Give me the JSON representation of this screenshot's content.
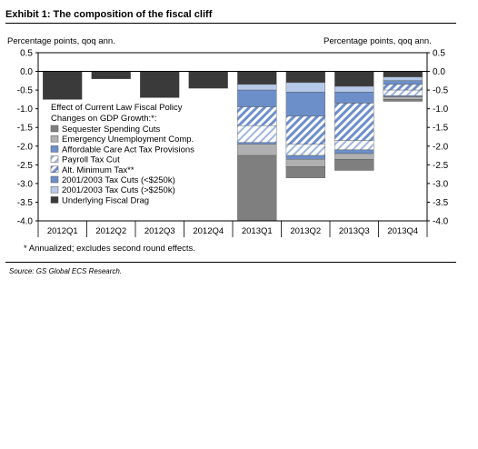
{
  "exhibit_title": "Exhibit 1: The composition of the fiscal cliff",
  "source": "Source: GS Global ECS Research.",
  "footnote": "* Annualized; excludes second round effects.",
  "colors": {
    "Sequester Spending Cuts": "#7f7f7f",
    "Emergency Unemployment Comp.": "#b0b0b0",
    "Affordable Care Act Tax Provisions": "#6d8fc9",
    "Payroll Tax Cut": "#e8eef8",
    "Alt. Minimum Tax**": "#6d8fc9",
    "2001/2003 Tax Cuts (<$250k)": "#6d8fc9",
    "2001/2003 Tax Cuts (>$250k)": "#b7c9e8",
    "Underlying Fiscal Drag": "#3a3a3a"
  },
  "chart_data": {
    "type": "bar",
    "stacked": true,
    "ylabel_left": "Percentage points, qoq ann.",
    "ylabel_right": "Percentage points, qoq ann.",
    "ylim": [
      -4.0,
      0.5
    ],
    "yticks": [
      0.5,
      0.0,
      -0.5,
      -1.0,
      -1.5,
      -2.0,
      -2.5,
      -3.0,
      -3.5,
      -4.0
    ],
    "ytick_labels": [
      "0.5",
      "0.0",
      "-0.5",
      "-1.0",
      "-1.5",
      "-2.0",
      "-2.5",
      "-3.0",
      "-3.5",
      "-4.0"
    ],
    "categories": [
      "2012Q1",
      "2012Q2",
      "2012Q3",
      "2012Q4",
      "2013Q1",
      "2013Q2",
      "2013Q3",
      "2013Q4"
    ],
    "legend_title": "Effect of Current Law Fiscal Policy Changes on GDP Growth:*:",
    "legend_position": "inside-left",
    "series": [
      {
        "name": "Underlying Fiscal Drag",
        "pattern": "solid",
        "values": [
          -0.75,
          -0.2,
          -0.7,
          -0.45,
          -0.35,
          -0.3,
          -0.4,
          -0.15
        ]
      },
      {
        "name": "2001/2003 Tax Cuts (>$250k)",
        "pattern": "solid",
        "values": [
          0,
          0,
          0,
          0,
          -0.15,
          -0.25,
          -0.15,
          -0.1
        ]
      },
      {
        "name": "2001/2003 Tax Cuts (<$250k)",
        "pattern": "solid",
        "values": [
          0,
          0,
          0,
          0,
          -0.45,
          -0.65,
          -0.3,
          -0.1
        ]
      },
      {
        "name": "Alt. Minimum Tax**",
        "pattern": "hatch",
        "values": [
          0,
          0,
          0,
          0,
          -0.5,
          -0.75,
          -1.0,
          -0.15
        ]
      },
      {
        "name": "Payroll Tax Cut",
        "pattern": "hatch",
        "values": [
          0,
          0,
          0,
          0,
          -0.45,
          -0.3,
          -0.25,
          -0.15
        ]
      },
      {
        "name": "Affordable Care Act Tax Provisions",
        "pattern": "solid",
        "values": [
          0,
          0,
          0,
          0,
          -0.05,
          -0.1,
          -0.1,
          -0.03
        ]
      },
      {
        "name": "Emergency Unemployment Comp.",
        "pattern": "solid",
        "values": [
          0,
          0,
          0,
          0,
          -0.3,
          -0.2,
          -0.15,
          -0.07
        ]
      },
      {
        "name": "Sequester Spending Cuts",
        "pattern": "solid",
        "values": [
          0,
          0,
          0,
          0,
          -1.75,
          -0.3,
          -0.3,
          -0.05
        ]
      }
    ],
    "legend_order": [
      "Sequester Spending Cuts",
      "Emergency Unemployment Comp.",
      "Affordable Care Act Tax Provisions",
      "Payroll Tax Cut",
      "Alt. Minimum Tax**",
      "2001/2003 Tax Cuts (<$250k)",
      "2001/2003 Tax Cuts (>$250k)",
      "Underlying Fiscal Drag"
    ],
    "grid": false
  }
}
